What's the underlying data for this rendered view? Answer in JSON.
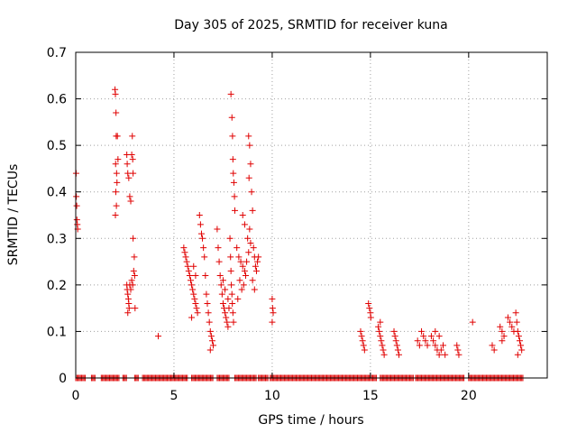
{
  "chart_data": {
    "type": "scatter",
    "title": "Day 305 of 2025, SRMTID for receiver kuna",
    "xlabel": "GPS time / hours",
    "ylabel": "SRMTID / TECUs",
    "xlim": [
      0,
      24
    ],
    "ylim": [
      0,
      0.7
    ],
    "xticks": [
      0,
      5,
      10,
      15,
      20
    ],
    "xtick_labels": [
      "0",
      "5",
      "10",
      "15",
      "20"
    ],
    "yticks": [
      0,
      0.1,
      0.2,
      0.3,
      0.4,
      0.5,
      0.6,
      0.7
    ],
    "ytick_labels": [
      "0",
      "0.1",
      "0.2",
      "0.3",
      "0.4",
      "0.5",
      "0.6",
      "0.7"
    ],
    "grid": true,
    "legend": "none",
    "marker": "plus",
    "color": "#e00000",
    "series": [
      {
        "name": "SRMTID",
        "points": [
          [
            0.02,
            0.44
          ],
          [
            0.03,
            0.39
          ],
          [
            0.05,
            0.37
          ],
          [
            0.06,
            0.34
          ],
          [
            0.08,
            0.33
          ],
          [
            0.1,
            0.32
          ],
          [
            2.0,
            0.62
          ],
          [
            2.02,
            0.61
          ],
          [
            2.05,
            0.57
          ],
          [
            2.06,
            0.52
          ],
          [
            2.03,
            0.46
          ],
          [
            2.08,
            0.44
          ],
          [
            2.1,
            0.42
          ],
          [
            2.04,
            0.4
          ],
          [
            2.07,
            0.37
          ],
          [
            2.02,
            0.35
          ],
          [
            2.12,
            0.52
          ],
          [
            2.15,
            0.47
          ],
          [
            2.6,
            0.48
          ],
          [
            2.62,
            0.46
          ],
          [
            2.65,
            0.44
          ],
          [
            2.7,
            0.43
          ],
          [
            2.75,
            0.39
          ],
          [
            2.8,
            0.38
          ],
          [
            2.85,
            0.48
          ],
          [
            2.9,
            0.47
          ],
          [
            2.88,
            0.52
          ],
          [
            2.92,
            0.44
          ],
          [
            2.6,
            0.2
          ],
          [
            2.62,
            0.19
          ],
          [
            2.65,
            0.18
          ],
          [
            2.68,
            0.17
          ],
          [
            2.7,
            0.16
          ],
          [
            2.72,
            0.15
          ],
          [
            2.75,
            0.2
          ],
          [
            2.8,
            0.19
          ],
          [
            2.85,
            0.21
          ],
          [
            2.9,
            0.2
          ],
          [
            2.95,
            0.23
          ],
          [
            3.0,
            0.22
          ],
          [
            2.98,
            0.26
          ],
          [
            3.02,
            0.15
          ],
          [
            2.92,
            0.3
          ],
          [
            2.65,
            0.14
          ],
          [
            4.2,
            0.09
          ],
          [
            5.5,
            0.28
          ],
          [
            5.55,
            0.27
          ],
          [
            5.6,
            0.26
          ],
          [
            5.65,
            0.25
          ],
          [
            5.7,
            0.24
          ],
          [
            5.75,
            0.23
          ],
          [
            5.8,
            0.22
          ],
          [
            5.85,
            0.21
          ],
          [
            5.9,
            0.2
          ],
          [
            5.95,
            0.19
          ],
          [
            6.0,
            0.18
          ],
          [
            6.05,
            0.17
          ],
          [
            6.1,
            0.16
          ],
          [
            6.15,
            0.15
          ],
          [
            6.2,
            0.14
          ],
          [
            6.0,
            0.24
          ],
          [
            6.1,
            0.22
          ],
          [
            5.9,
            0.13
          ],
          [
            6.3,
            0.35
          ],
          [
            6.35,
            0.33
          ],
          [
            6.4,
            0.31
          ],
          [
            6.45,
            0.3
          ],
          [
            6.5,
            0.28
          ],
          [
            6.55,
            0.26
          ],
          [
            6.6,
            0.22
          ],
          [
            6.65,
            0.18
          ],
          [
            6.7,
            0.16
          ],
          [
            6.75,
            0.14
          ],
          [
            6.8,
            0.12
          ],
          [
            6.85,
            0.1
          ],
          [
            6.9,
            0.09
          ],
          [
            6.95,
            0.08
          ],
          [
            7.0,
            0.07
          ],
          [
            6.85,
            0.06
          ],
          [
            7.2,
            0.32
          ],
          [
            7.25,
            0.28
          ],
          [
            7.3,
            0.25
          ],
          [
            7.35,
            0.22
          ],
          [
            7.4,
            0.2
          ],
          [
            7.45,
            0.18
          ],
          [
            7.5,
            0.16
          ],
          [
            7.55,
            0.15
          ],
          [
            7.6,
            0.14
          ],
          [
            7.65,
            0.13
          ],
          [
            7.7,
            0.12
          ],
          [
            7.75,
            0.11
          ],
          [
            7.5,
            0.21
          ],
          [
            7.6,
            0.19
          ],
          [
            7.9,
            0.61
          ],
          [
            7.95,
            0.56
          ],
          [
            7.98,
            0.52
          ],
          [
            8.0,
            0.47
          ],
          [
            8.02,
            0.44
          ],
          [
            8.05,
            0.42
          ],
          [
            8.08,
            0.39
          ],
          [
            8.1,
            0.36
          ],
          [
            7.85,
            0.3
          ],
          [
            7.88,
            0.26
          ],
          [
            7.9,
            0.23
          ],
          [
            7.92,
            0.2
          ],
          [
            7.95,
            0.18
          ],
          [
            7.97,
            0.16
          ],
          [
            8.0,
            0.14
          ],
          [
            8.03,
            0.12
          ],
          [
            7.8,
            0.15
          ],
          [
            7.75,
            0.17
          ],
          [
            8.2,
            0.28
          ],
          [
            8.3,
            0.26
          ],
          [
            8.4,
            0.25
          ],
          [
            8.5,
            0.24
          ],
          [
            8.6,
            0.23
          ],
          [
            8.7,
            0.25
          ],
          [
            8.8,
            0.27
          ],
          [
            8.9,
            0.29
          ],
          [
            8.35,
            0.21
          ],
          [
            8.45,
            0.19
          ],
          [
            8.55,
            0.2
          ],
          [
            8.65,
            0.22
          ],
          [
            8.75,
            0.3
          ],
          [
            8.5,
            0.35
          ],
          [
            8.6,
            0.33
          ],
          [
            8.85,
            0.32
          ],
          [
            8.25,
            0.17
          ],
          [
            8.8,
            0.52
          ],
          [
            8.85,
            0.5
          ],
          [
            8.9,
            0.46
          ],
          [
            8.82,
            0.43
          ],
          [
            8.95,
            0.4
          ],
          [
            9.0,
            0.36
          ],
          [
            9.05,
            0.28
          ],
          [
            9.1,
            0.26
          ],
          [
            9.15,
            0.24
          ],
          [
            9.2,
            0.23
          ],
          [
            9.25,
            0.25
          ],
          [
            9.3,
            0.26
          ],
          [
            9.0,
            0.21
          ],
          [
            9.1,
            0.19
          ],
          [
            10.0,
            0.17
          ],
          [
            10.02,
            0.15
          ],
          [
            10.05,
            0.14
          ],
          [
            10.0,
            0.12
          ],
          [
            14.5,
            0.1
          ],
          [
            14.55,
            0.09
          ],
          [
            14.6,
            0.08
          ],
          [
            14.65,
            0.07
          ],
          [
            14.7,
            0.06
          ],
          [
            14.9,
            0.16
          ],
          [
            14.95,
            0.15
          ],
          [
            15.0,
            0.14
          ],
          [
            15.02,
            0.13
          ],
          [
            15.4,
            0.11
          ],
          [
            15.45,
            0.1
          ],
          [
            15.5,
            0.09
          ],
          [
            15.55,
            0.08
          ],
          [
            15.6,
            0.07
          ],
          [
            15.65,
            0.06
          ],
          [
            15.7,
            0.05
          ],
          [
            15.5,
            0.12
          ],
          [
            16.2,
            0.1
          ],
          [
            16.25,
            0.09
          ],
          [
            16.3,
            0.08
          ],
          [
            16.35,
            0.07
          ],
          [
            16.4,
            0.06
          ],
          [
            16.45,
            0.05
          ],
          [
            17.4,
            0.08
          ],
          [
            17.5,
            0.07
          ],
          [
            17.6,
            0.1
          ],
          [
            17.7,
            0.09
          ],
          [
            17.8,
            0.08
          ],
          [
            17.9,
            0.07
          ],
          [
            18.1,
            0.09
          ],
          [
            18.2,
            0.08
          ],
          [
            18.3,
            0.07
          ],
          [
            18.4,
            0.06
          ],
          [
            18.5,
            0.05
          ],
          [
            18.6,
            0.06
          ],
          [
            18.7,
            0.07
          ],
          [
            18.8,
            0.05
          ],
          [
            18.5,
            0.09
          ],
          [
            18.3,
            0.1
          ],
          [
            19.4,
            0.07
          ],
          [
            19.45,
            0.06
          ],
          [
            19.5,
            0.05
          ],
          [
            20.2,
            0.12
          ],
          [
            21.2,
            0.07
          ],
          [
            21.3,
            0.06
          ],
          [
            21.6,
            0.11
          ],
          [
            21.7,
            0.1
          ],
          [
            21.8,
            0.09
          ],
          [
            21.7,
            0.08
          ],
          [
            22.0,
            0.13
          ],
          [
            22.1,
            0.12
          ],
          [
            22.2,
            0.11
          ],
          [
            22.3,
            0.1
          ],
          [
            22.4,
            0.14
          ],
          [
            22.45,
            0.12
          ],
          [
            22.5,
            0.1
          ],
          [
            22.55,
            0.09
          ],
          [
            22.6,
            0.08
          ],
          [
            22.65,
            0.07
          ],
          [
            22.7,
            0.06
          ],
          [
            22.5,
            0.05
          ]
        ],
        "zero_runs": [
          [
            0.0,
            0.5
          ],
          [
            0.8,
            1.0
          ],
          [
            1.3,
            2.2
          ],
          [
            2.4,
            2.6
          ],
          [
            3.0,
            3.2
          ],
          [
            3.4,
            5.7
          ],
          [
            5.9,
            7.0
          ],
          [
            7.2,
            7.8
          ],
          [
            8.1,
            9.2
          ],
          [
            9.3,
            9.8
          ],
          [
            9.9,
            15.3
          ],
          [
            15.5,
            17.2
          ],
          [
            17.3,
            19.8
          ],
          [
            20.0,
            22.8
          ]
        ]
      }
    ]
  }
}
